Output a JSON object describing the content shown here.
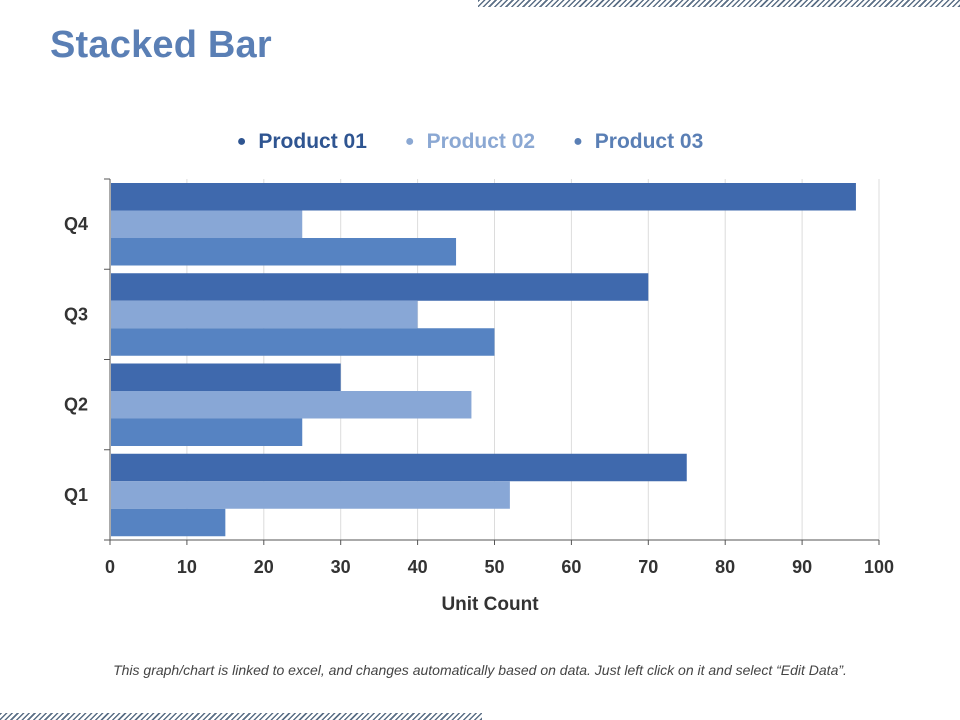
{
  "page": {
    "title": "Stacked Bar",
    "footnote": "This graph/chart is linked to excel, and changes automatically based on data. Just left click on it and select “Edit Data”."
  },
  "colors": {
    "title": "#5a7fb5",
    "series": [
      "#3f69ad",
      "#88a7d6",
      "#5683c2"
    ],
    "legend_text": [
      "#2f5591",
      "#8ba8d3",
      "#5a7fb5"
    ]
  },
  "chart_data": {
    "type": "bar",
    "orientation": "horizontal",
    "title": "Stacked Bar",
    "xlabel": "Unit Count",
    "ylabel": "",
    "xlim": [
      0,
      100
    ],
    "x_ticks": [
      0,
      10,
      20,
      30,
      40,
      50,
      60,
      70,
      80,
      90,
      100
    ],
    "categories": [
      "Q1",
      "Q2",
      "Q3",
      "Q4"
    ],
    "series": [
      {
        "name": "Product 01",
        "values": [
          75,
          30,
          70,
          97
        ]
      },
      {
        "name": "Product 02",
        "values": [
          52,
          47,
          40,
          25
        ]
      },
      {
        "name": "Product 03",
        "values": [
          15,
          25,
          50,
          45
        ]
      }
    ],
    "legend_position": "top",
    "grid": true
  }
}
